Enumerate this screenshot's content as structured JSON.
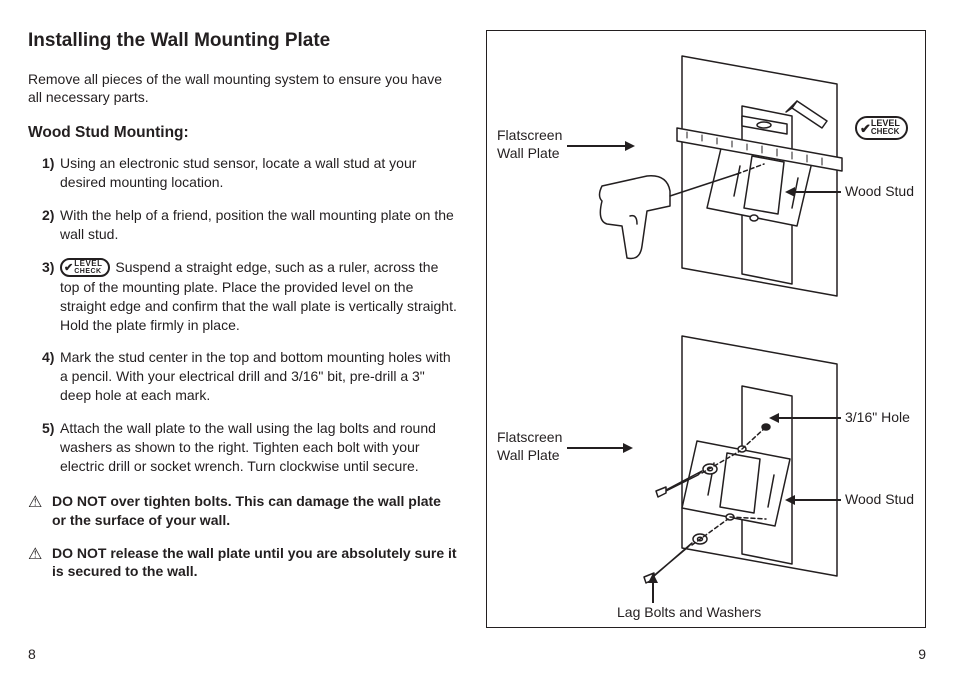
{
  "title": "Installing the Wall Mounting Plate",
  "intro": "Remove all pieces of the wall mounting system to ensure you have all necessary parts.",
  "subhead": "Wood Stud Mounting:",
  "steps": [
    {
      "n": "1)",
      "text": "Using an electronic stud sensor, locate a wall stud at your desired mounting location."
    },
    {
      "n": "2)",
      "text": "With the help of a friend, position the wall mounting plate on the wall stud."
    },
    {
      "n": "3)",
      "badge": true,
      "text": " Suspend a straight edge, such as a ruler, across the top of the mounting plate. Place the provided level on the straight edge and confirm that the wall plate is vertically straight. Hold the plate firmly in place."
    },
    {
      "n": "4)",
      "text": "Mark the stud center in the top and bottom mounting holes with a pencil. With your electrical drill and 3/16\" bit, pre-drill a 3\" deep hole at each mark."
    },
    {
      "n": "5)",
      "text": "Attach the wall plate to the wall using the lag bolts and round washers as shown to the right. Tighten each bolt with your electric drill or socket wrench. Turn clockwise until secure."
    }
  ],
  "warnings": [
    "DO NOT over tighten bolts. This can damage the wall plate or the surface of your wall.",
    "DO NOT release the wall plate until you are absolutely sure it is secured to the wall."
  ],
  "badge": {
    "line1": "LEVEL",
    "line2": "CHECK"
  },
  "pageLeft": "8",
  "pageRight": "9",
  "diagram": {
    "labels": {
      "flatscreen1": "Flatscreen\nWall Plate",
      "woodstud1": "Wood Stud",
      "flatscreen2": "Flatscreen\nWall Plate",
      "hole": "3/16\" Hole",
      "woodstud2": "Wood Stud",
      "lagbolts": "Lag Bolts and Washers"
    },
    "styling": {
      "stroke": "#231f20",
      "fill": "#ffffff",
      "strokeWidth": 1.5,
      "labelFontSize": 14
    }
  }
}
